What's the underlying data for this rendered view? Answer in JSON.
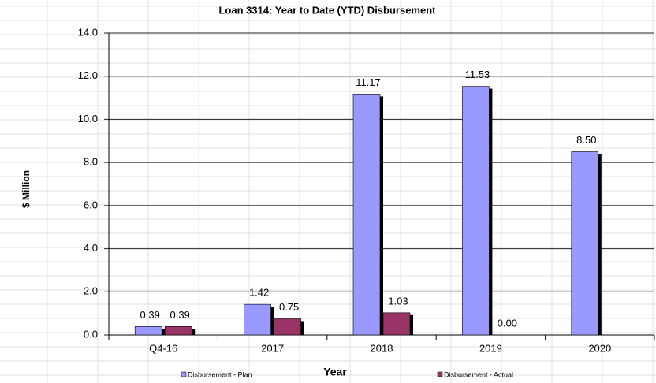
{
  "chart_data": {
    "type": "bar",
    "title": "Loan 3314: Year to Date (YTD) Disbursement",
    "x_label": "Year",
    "y_label": "$ Million",
    "categories": [
      "Q4-16",
      "2017",
      "2018",
      "2019",
      "2020"
    ],
    "series": [
      {
        "name": "Disbursement - Plan",
        "color": "#9999ff",
        "values": [
          0.39,
          1.42,
          11.17,
          11.53,
          8.5
        ],
        "value_labels": [
          "0.39",
          "1.42",
          "11.17",
          "11.53",
          "8.50"
        ]
      },
      {
        "name": "Disbursement - Actual",
        "color": "#993366",
        "values": [
          0.39,
          0.75,
          1.03,
          0.0,
          null
        ],
        "value_labels": [
          "0.39",
          "0.75",
          "1.03",
          "0.00",
          null
        ]
      }
    ],
    "ylim": [
      0,
      14
    ],
    "yticks": [
      {
        "value": 0,
        "label": "0.0"
      },
      {
        "value": 2,
        "label": "2.0"
      },
      {
        "value": 4,
        "label": "4.0"
      },
      {
        "value": 6,
        "label": "6.0"
      },
      {
        "value": 8,
        "label": "8.0"
      },
      {
        "value": 10,
        "label": "10.0"
      },
      {
        "value": 12,
        "label": "12.0"
      },
      {
        "value": 14,
        "label": "14.0"
      }
    ],
    "grid": true,
    "legend": "bottom"
  }
}
